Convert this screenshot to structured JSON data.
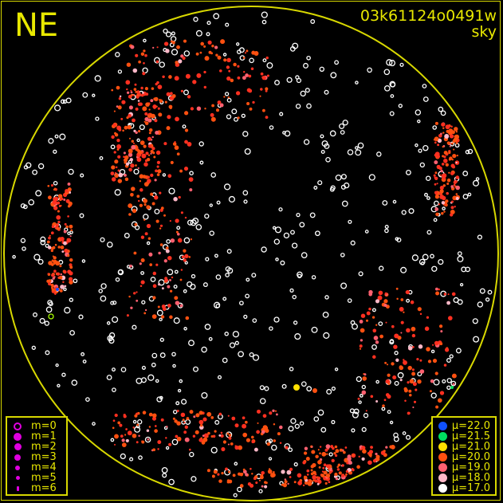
{
  "direction_label": "NE",
  "frame_id": "03k61124o0491w",
  "subtitle": "sky",
  "colors": {
    "frame": "#d8d800",
    "text": "#e8e800",
    "magnitude_symbol": "#e000e0"
  },
  "magnitude_legend": [
    {
      "label": "m=0",
      "symbol": "ring"
    },
    {
      "label": "m=1",
      "symbol": "dot"
    },
    {
      "label": "m=2",
      "symbol": "dot"
    },
    {
      "label": "m=3",
      "symbol": "dot"
    },
    {
      "label": "m=4",
      "symbol": "dot"
    },
    {
      "label": "m=5",
      "symbol": "dot"
    },
    {
      "label": "m=6",
      "symbol": "dot"
    }
  ],
  "mu_legend": [
    {
      "label": "μ=22.0",
      "color": "#1050ff"
    },
    {
      "label": "μ=21.5",
      "color": "#00e060"
    },
    {
      "label": "μ=21.0",
      "color": "#ffe000"
    },
    {
      "label": "μ=20.0",
      "color": "#ff5010"
    },
    {
      "label": "μ=19.0",
      "color": "#ff6070"
    },
    {
      "label": "μ=18.0",
      "color": "#ffb8c8"
    },
    {
      "label": "μ=17.0",
      "color": "#ffffff"
    }
  ]
}
